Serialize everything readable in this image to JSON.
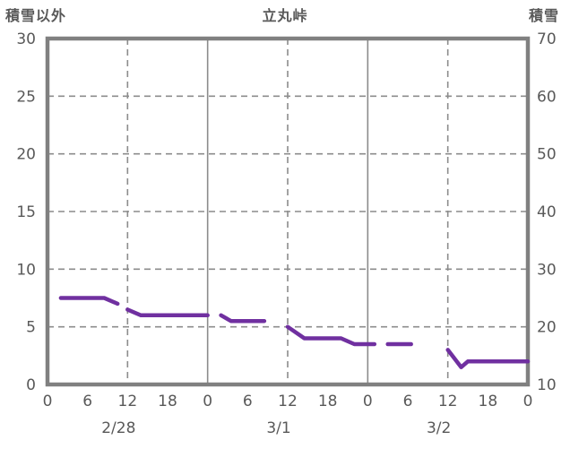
{
  "header": {
    "left_axis_title": "積雪以外",
    "chart_title": "立丸峠",
    "right_axis_title": "積雪"
  },
  "colors": {
    "line": "#7030A0",
    "grid": "#8C8C8C",
    "border": "#808080",
    "text": "#595959",
    "background": "#FFFFFF"
  },
  "chart_data": {
    "type": "line",
    "title": "立丸峠",
    "left_axis": {
      "title": "積雪以外",
      "min": 0,
      "max": 30,
      "ticks": [
        0,
        5,
        10,
        15,
        20,
        25,
        30
      ],
      "gridline_values": [
        5,
        10,
        15,
        20,
        25
      ]
    },
    "right_axis": {
      "title": "積雪",
      "min": 10,
      "max": 70,
      "ticks": [
        10,
        20,
        30,
        40,
        50,
        60,
        70
      ]
    },
    "x_axis": {
      "range_hours": [
        0,
        72
      ],
      "hour_tick_step": 6,
      "hour_tick_labels": [
        "0",
        "6",
        "12",
        "18",
        "0",
        "6",
        "12",
        "18",
        "0",
        "6",
        "12",
        "18",
        "0"
      ],
      "date_labels": [
        "2/28",
        "3/1",
        "3/2"
      ],
      "dashed_gridline_hours": [
        12,
        36,
        60
      ],
      "solid_gridline_hours": [
        24,
        48
      ],
      "grid": "on",
      "legend": "none"
    },
    "series": [
      {
        "name": "積雪",
        "axis": "right",
        "unit": "cm",
        "color": "#7030A0",
        "segments": [
          [
            [
              2,
              25
            ],
            [
              8.5,
              25
            ],
            [
              10.5,
              24
            ]
          ],
          [
            [
              12,
              23
            ],
            [
              14,
              22
            ],
            [
              24,
              22
            ]
          ],
          [
            [
              26,
              22
            ],
            [
              27.5,
              21
            ],
            [
              32.5,
              21
            ]
          ],
          [
            [
              36,
              20
            ],
            [
              38.5,
              18
            ],
            [
              44,
              18
            ],
            [
              46,
              17
            ],
            [
              49,
              17
            ]
          ],
          [
            [
              51,
              17
            ],
            [
              54.5,
              17
            ]
          ],
          [
            [
              60,
              16
            ],
            [
              62,
              13
            ],
            [
              63,
              14
            ],
            [
              72,
              14
            ]
          ]
        ]
      }
    ]
  }
}
